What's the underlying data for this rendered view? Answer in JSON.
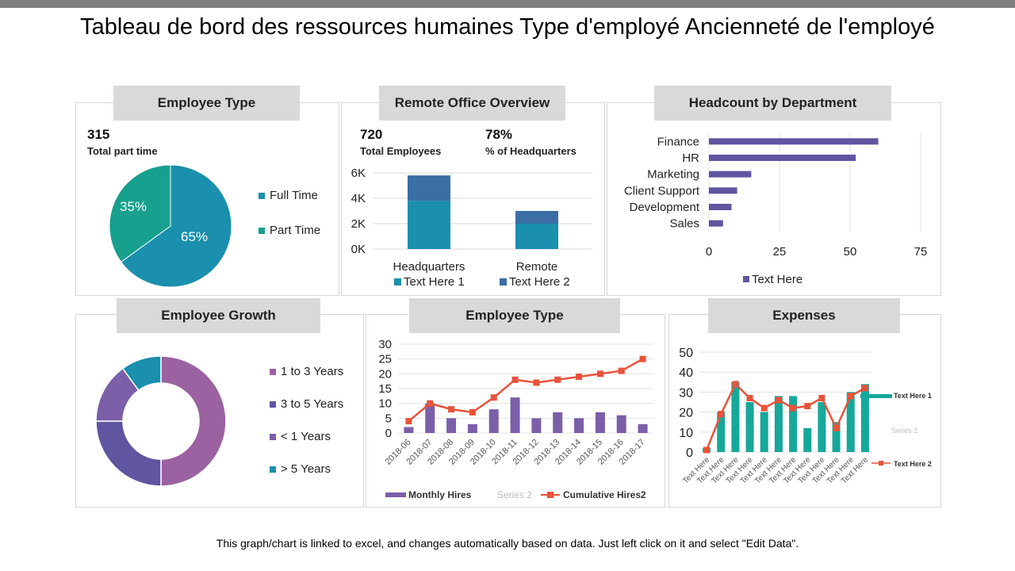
{
  "title": "Tableau de bord des ressources humaines Type d'employé Ancienneté de l'employé",
  "footer": "This graph/chart is linked to excel, and changes automatically based on data. Just left click on it and select \"Edit Data\".",
  "colors": {
    "teal_blue": "#1a8fae",
    "teal_green": "#16a08d",
    "steel_blue": "#3a6ea5",
    "purple": "#5f55a0",
    "mauve": "#9a62a0",
    "violet": "#7b5fa8",
    "red_orange": "#e8533a",
    "teal": "#15a89b"
  },
  "panels": {
    "employee_type_pie": {
      "title": "Employee Type",
      "stat_value": "315",
      "stat_label": "Total part time",
      "legend": [
        "Full Time",
        "Part Time"
      ]
    },
    "remote_office": {
      "title": "Remote Office Overview",
      "stat1_value": "720",
      "stat1_label": "Total Employees",
      "stat2_value": "78%",
      "stat2_label": "% of Headquarters"
    },
    "headcount": {
      "title": "Headcount by Department"
    },
    "growth": {
      "title": "Employee Growth"
    },
    "employee_type_combo": {
      "title": "Employee Type"
    },
    "expenses": {
      "title": "Expenses"
    }
  },
  "chart_data": [
    {
      "type": "pie",
      "categories": [
        "Full Time",
        "Part Time"
      ],
      "values": [
        65,
        35
      ],
      "data_labels": [
        "65%",
        "35%"
      ]
    },
    {
      "type": "bar",
      "stacked": true,
      "categories": [
        "Headquarters",
        "Remote"
      ],
      "series": [
        {
          "name": "Text Here 1",
          "values": [
            3800,
            2000
          ]
        },
        {
          "name": "Text Here 2",
          "values": [
            2000,
            1000
          ]
        }
      ],
      "y_ticks": [
        "0K",
        "2K",
        "4K",
        "6K"
      ],
      "ylim": [
        0,
        6000
      ]
    },
    {
      "type": "bar",
      "orientation": "horizontal",
      "categories": [
        "Finance",
        "HR",
        "Marketing",
        "Client Support",
        "Development",
        "Sales"
      ],
      "series": [
        {
          "name": "Text Here",
          "values": [
            60,
            52,
            15,
            10,
            8,
            5
          ]
        }
      ],
      "x_ticks": [
        "0",
        "25",
        "50",
        "75"
      ],
      "xlim": [
        0,
        75
      ]
    },
    {
      "type": "pie",
      "donut": true,
      "categories": [
        "1 to 3 Years",
        "3 to 5 Years",
        "< 1 Years",
        "> 5 Years"
      ],
      "values": [
        50,
        25,
        15,
        10
      ]
    },
    {
      "type": "bar",
      "categories": [
        "2018-06",
        "2018-07",
        "2018-08",
        "2018-09",
        "2018-10",
        "2018-11",
        "2018-12",
        "2018-13",
        "2018-14",
        "2018-15",
        "2018-16",
        "2018-17"
      ],
      "series": [
        {
          "name": "Monthly Hires",
          "type": "bar",
          "values": [
            2,
            10,
            5,
            3,
            8,
            12,
            5,
            7,
            5,
            7,
            6,
            3
          ]
        },
        {
          "name": "Cumulative Hires2",
          "type": "line",
          "values": [
            4,
            10,
            8,
            7,
            12,
            18,
            17,
            18,
            19,
            20,
            21,
            25
          ]
        }
      ],
      "legend": [
        "Monthly Hires",
        "Series 2",
        "Cumulative Hires2"
      ],
      "y_ticks": [
        "0",
        "5",
        "10",
        "15",
        "20",
        "25",
        "30"
      ],
      "ylim": [
        0,
        30
      ]
    },
    {
      "type": "bar",
      "categories": [
        "Text Here",
        "Text Here",
        "Text Here",
        "Text Here",
        "Text Here",
        "Text Here",
        "Text Here",
        "Text Here",
        "Text Here",
        "Text Here",
        "Text Here",
        "Text Here"
      ],
      "series": [
        {
          "name": "Text Here 1",
          "type": "bar",
          "values": [
            2,
            20,
            35,
            25,
            20,
            28,
            28,
            12,
            25,
            15,
            30,
            34
          ]
        },
        {
          "name": "Text Here 2",
          "type": "line",
          "values": [
            1,
            19,
            34,
            27,
            22,
            26,
            22,
            23,
            27,
            12,
            28,
            32
          ]
        }
      ],
      "legend": [
        "Text Here 1",
        "Series 2",
        "Text Here 2"
      ],
      "y_ticks": [
        "0",
        "10",
        "20",
        "30",
        "40",
        "50"
      ],
      "ylim": [
        0,
        50
      ]
    }
  ]
}
